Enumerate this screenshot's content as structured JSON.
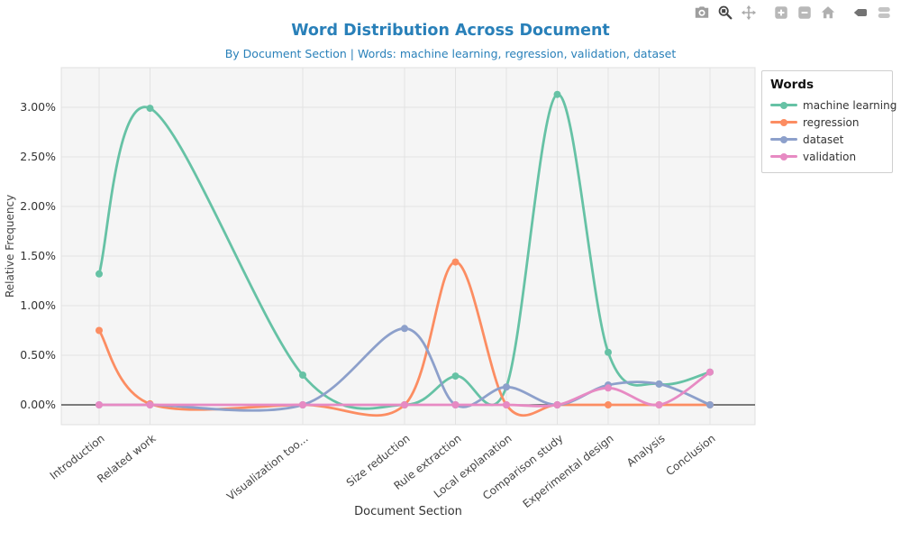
{
  "title": "Word Distribution Across Document",
  "subtitle": "By Document Section | Words: machine learning, regression, validation, dataset",
  "toolbar": {
    "tools": [
      "save-camera",
      "box-zoom",
      "pan",
      "zoom-in",
      "zoom-out",
      "reset-home",
      "hover-closest",
      "hover-compare"
    ]
  },
  "chart_data": {
    "type": "line",
    "title": "Word Distribution Across Document",
    "subtitle": "By Document Section | Words: machine learning, regression, validation, dataset",
    "x_axis": {
      "label": "Document Section",
      "tick_rotation_deg": -38
    },
    "y_axis": {
      "label": "Relative Frequency",
      "ticks": [
        "0.00%",
        "0.50%",
        "1.00%",
        "1.50%",
        "2.00%",
        "2.50%",
        "3.00%"
      ],
      "tick_values": [
        0.0,
        0.5,
        1.0,
        1.5,
        2.0,
        2.5,
        3.0
      ],
      "range_pct": [
        -0.2,
        3.4
      ],
      "unit": "percent"
    },
    "grid": true,
    "categories": [
      "Introduction",
      "Related work",
      "Visualization too...",
      "Size reduction",
      "Rule extraction",
      "Local explanation",
      "Comparison study",
      "Experimental design",
      "Analysis",
      "Conclusion"
    ],
    "x_positions": [
      0,
      1,
      4,
      6,
      7,
      8,
      9,
      10,
      11,
      12
    ],
    "series": [
      {
        "name": "machine learning",
        "color": "#66c2a5",
        "values": [
          1.32,
          2.99,
          0.3,
          0.0,
          0.29,
          0.18,
          3.13,
          0.53,
          0.21,
          0.33
        ]
      },
      {
        "name": "regression",
        "color": "#fc8d62",
        "values": [
          0.75,
          0.01,
          0.0,
          0.0,
          1.44,
          0.0,
          0.0,
          0.0,
          0.0,
          0.0
        ]
      },
      {
        "name": "dataset",
        "color": "#8da0cb",
        "values": [
          0.0,
          0.0,
          0.0,
          0.77,
          0.0,
          0.18,
          0.0,
          0.2,
          0.21,
          0.0
        ]
      },
      {
        "name": "validation",
        "color": "#e78ac3",
        "values": [
          0.0,
          0.0,
          0.0,
          0.0,
          0.0,
          0.0,
          0.0,
          0.17,
          0.0,
          0.33
        ]
      }
    ],
    "legend": {
      "title": "Words",
      "position": "right",
      "order": [
        "machine learning",
        "regression",
        "dataset",
        "validation"
      ]
    },
    "colors": {
      "title_blue": "#2980b9",
      "plot_background": "#f5f5f5",
      "gridline": "#e2e2e2",
      "zero_line": "#333333"
    }
  }
}
